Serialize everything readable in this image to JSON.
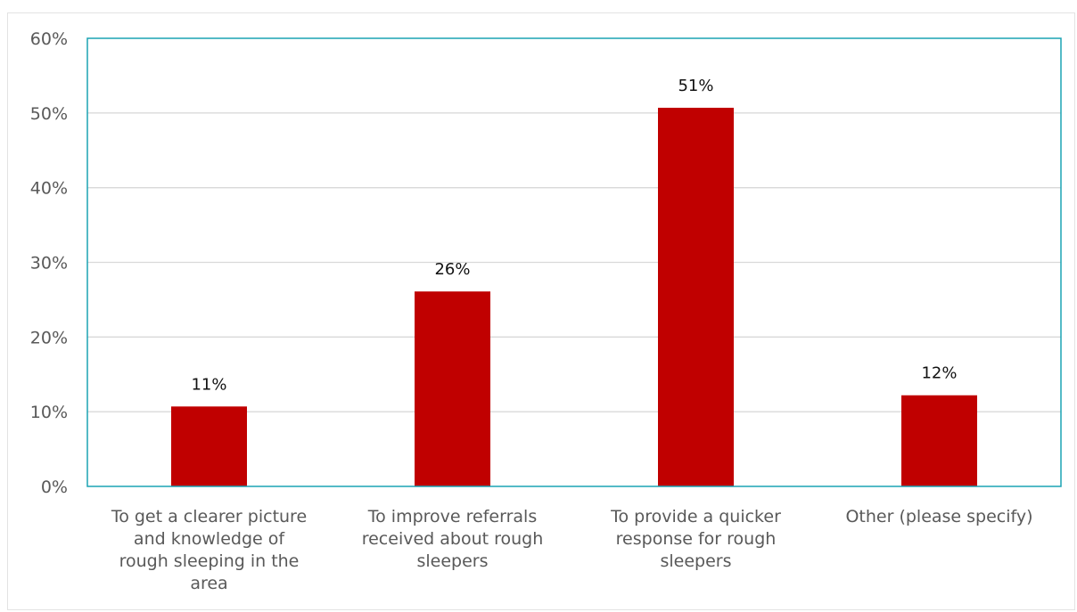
{
  "chart_data": {
    "type": "bar",
    "categories": [
      [
        "To get a clearer picture",
        "and knowledge of",
        "rough sleeping in the",
        "area"
      ],
      [
        "To improve referrals",
        "received about rough",
        "sleepers"
      ],
      [
        "To provide a quicker",
        "response for rough",
        "sleepers"
      ],
      [
        "Other (please specify)"
      ]
    ],
    "values": [
      10.7,
      26.1,
      50.7,
      12.2
    ],
    "data_labels": [
      "11%",
      "26%",
      "51%",
      "12%"
    ],
    "y_ticks": [
      "0%",
      "10%",
      "20%",
      "30%",
      "40%",
      "50%",
      "60%"
    ],
    "ylim": [
      0,
      60
    ],
    "grid": true,
    "legend": "none",
    "colors": {
      "bar": "#c00000",
      "plot_border": "#1ba3b4",
      "grid": "#d9d9d9"
    }
  }
}
